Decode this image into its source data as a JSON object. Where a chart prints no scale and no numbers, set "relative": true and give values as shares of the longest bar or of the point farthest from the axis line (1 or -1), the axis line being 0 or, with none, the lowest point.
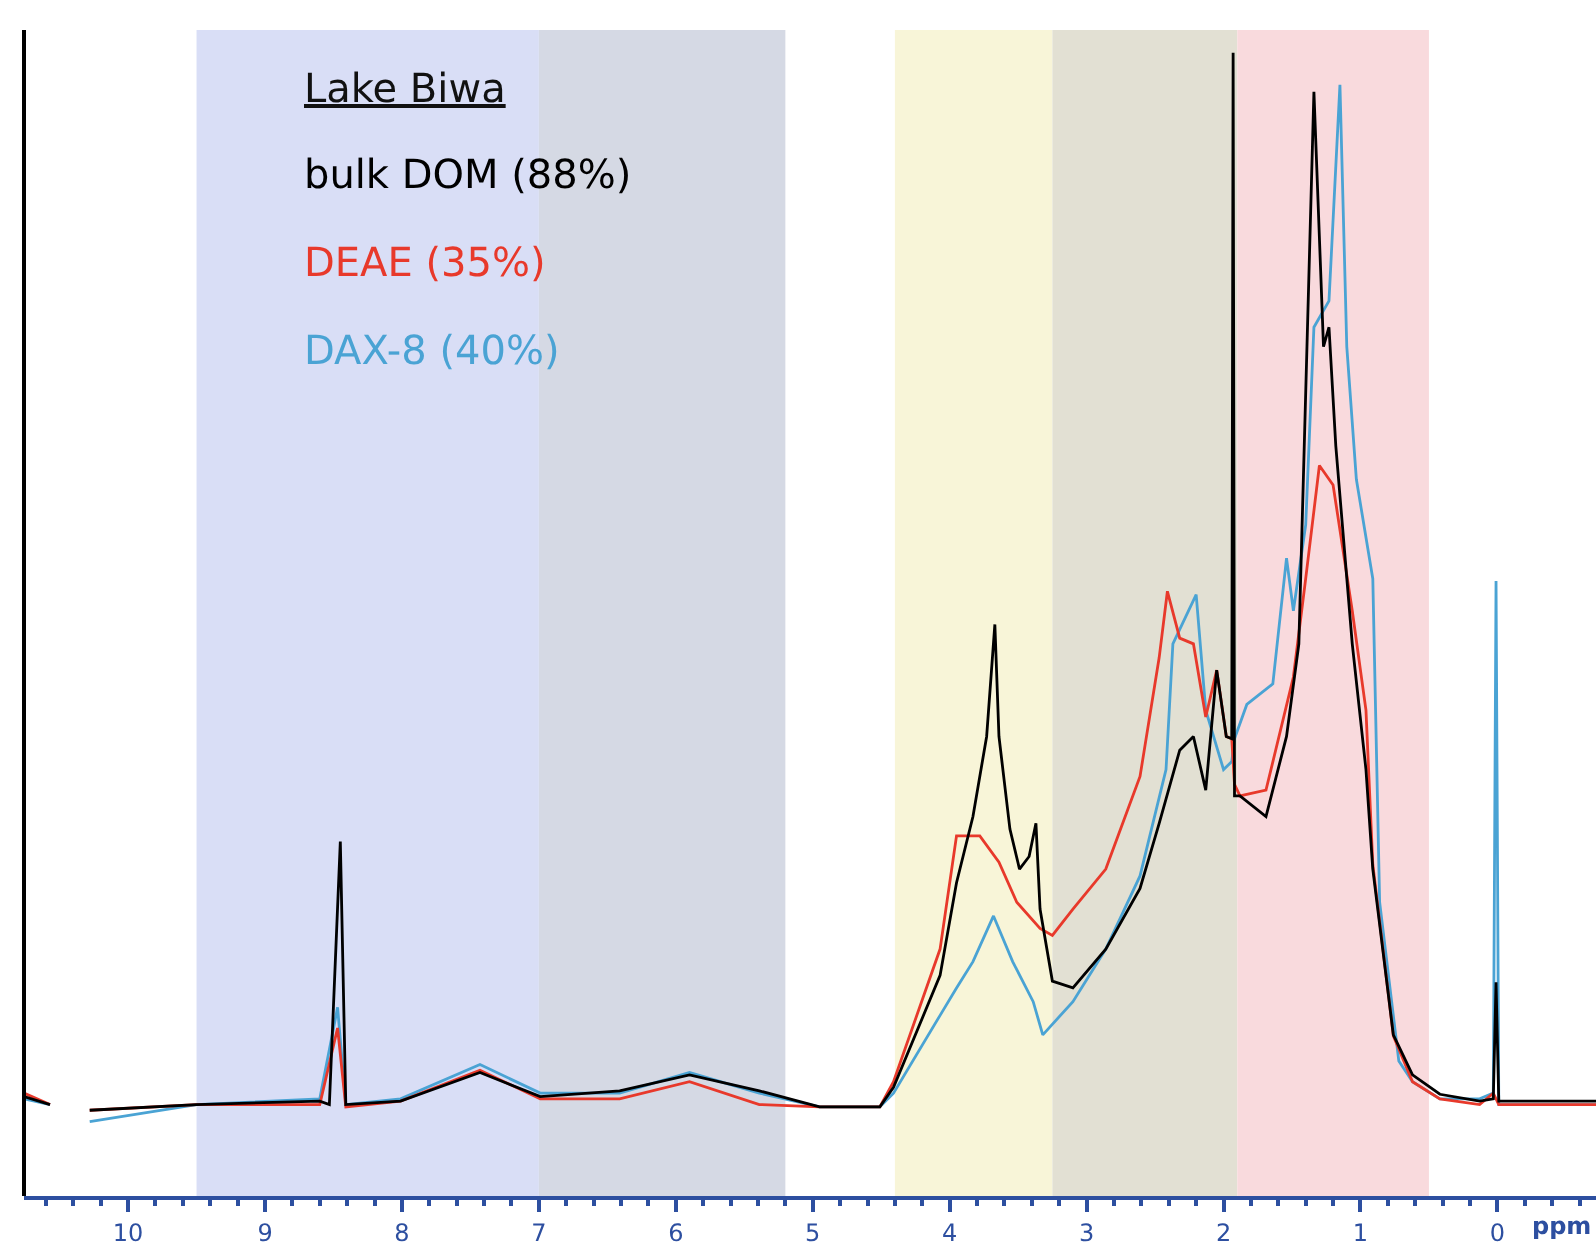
{
  "chart_data": {
    "type": "line",
    "relative": true,
    "xlabel": "ppm",
    "legend_title": "Lake Biwa",
    "xlim": [
      10.76,
      -0.72
    ],
    "xticks": [
      10,
      9,
      8,
      7,
      6,
      5,
      4,
      3,
      2,
      1,
      0
    ],
    "grid": false,
    "legend": false,
    "marker": "none",
    "line_style": "solid",
    "bands": [
      {
        "axis": "x",
        "from": 9.5,
        "to": 7.0,
        "color": "#d9def6"
      },
      {
        "axis": "x",
        "from": 7.0,
        "to": 5.2,
        "color": "#d5d9e4"
      },
      {
        "axis": "x",
        "from": 4.4,
        "to": 3.25,
        "color": "#f8f5d8"
      },
      {
        "axis": "x",
        "from": 3.25,
        "to": 1.9,
        "color": "#e2e0d3"
      },
      {
        "axis": "x",
        "from": 1.9,
        "to": 0.5,
        "color": "#f9dadd"
      }
    ],
    "series": [
      {
        "name": "DAX-8 (40%)",
        "color": "#4aa3d4",
        "x": [
          10.76,
          10.57,
          10.42,
          10.28,
          9.5,
          8.6,
          8.47,
          8.41,
          8.01,
          7.43,
          6.99,
          6.41,
          5.9,
          5.39,
          4.95,
          4.51,
          4.41,
          4.07,
          3.95,
          3.83,
          3.68,
          3.54,
          3.39,
          3.32,
          3.1,
          2.86,
          2.61,
          2.42,
          2.37,
          2.2,
          2.13,
          2.0,
          1.94,
          1.92,
          1.83,
          1.64,
          1.54,
          1.49,
          1.4,
          1.34,
          1.23,
          1.15,
          1.1,
          1.03,
          0.91,
          0.86,
          0.72,
          0.62,
          0.42,
          0.13,
          0.03,
          0.01,
          -0.01,
          -0.06,
          -0.72
        ],
        "values": [
          0.085,
          0.08,
          null,
          0.065,
          0.08,
          0.085,
          0.165,
          0.08,
          0.085,
          0.115,
          0.09,
          0.09,
          0.108,
          0.09,
          0.078,
          0.078,
          0.09,
          0.158,
          0.182,
          0.205,
          0.245,
          0.205,
          0.17,
          0.141,
          0.17,
          0.216,
          0.28,
          0.373,
          0.483,
          0.526,
          0.425,
          0.373,
          0.38,
          0.4,
          0.43,
          0.448,
          0.558,
          0.512,
          0.587,
          0.76,
          0.783,
          0.972,
          0.743,
          0.627,
          0.54,
          0.257,
          0.118,
          0.1,
          0.085,
          0.085,
          0.09,
          0.538,
          0.08,
          0.08,
          0.08
        ]
      },
      {
        "name": "DEAE (35%)",
        "color": "#e8392b",
        "x": [
          10.76,
          10.57,
          10.42,
          10.28,
          9.5,
          8.6,
          8.47,
          8.41,
          8.01,
          7.43,
          6.99,
          6.41,
          5.9,
          5.39,
          4.95,
          4.51,
          4.41,
          4.07,
          3.95,
          3.78,
          3.64,
          3.51,
          3.34,
          3.25,
          3.1,
          2.86,
          2.61,
          2.47,
          2.41,
          2.32,
          2.22,
          2.13,
          2.05,
          1.98,
          1.94,
          1.92,
          1.88,
          1.69,
          1.49,
          1.4,
          1.3,
          1.2,
          1.06,
          0.96,
          0.91,
          0.76,
          0.62,
          0.42,
          0.13,
          0.03,
          -0.01,
          -0.06,
          -0.72
        ],
        "values": [
          0.09,
          0.08,
          null,
          0.075,
          0.08,
          0.08,
          0.147,
          0.078,
          0.083,
          0.11,
          0.085,
          0.085,
          0.1,
          0.08,
          0.078,
          0.078,
          0.1,
          0.216,
          0.315,
          0.315,
          0.292,
          0.257,
          0.234,
          0.228,
          0.251,
          0.286,
          0.367,
          0.471,
          0.529,
          0.488,
          0.483,
          0.419,
          0.46,
          0.402,
          0.4,
          0.36,
          0.35,
          0.355,
          0.454,
          0.54,
          0.639,
          0.622,
          0.512,
          0.425,
          0.29,
          0.14,
          0.1,
          0.085,
          0.08,
          0.09,
          0.08,
          0.08,
          0.08
        ]
      },
      {
        "name": "bulk DOM (88%)",
        "color": "#000000",
        "x": [
          10.76,
          10.57,
          10.42,
          10.28,
          9.5,
          8.6,
          8.53,
          8.45,
          8.41,
          8.01,
          7.43,
          6.99,
          6.41,
          5.9,
          5.39,
          4.95,
          4.51,
          4.41,
          4.07,
          3.95,
          3.83,
          3.73,
          3.67,
          3.64,
          3.56,
          3.49,
          3.42,
          3.37,
          3.34,
          3.25,
          3.1,
          2.86,
          2.61,
          2.47,
          2.32,
          2.22,
          2.13,
          2.05,
          1.98,
          1.94,
          1.93,
          1.92,
          1.88,
          1.69,
          1.54,
          1.45,
          1.34,
          1.27,
          1.23,
          1.18,
          1.06,
          0.96,
          0.91,
          0.76,
          0.62,
          0.42,
          0.13,
          0.03,
          0.01,
          -0.01,
          -0.06,
          -0.72
        ],
        "values": [
          0.087,
          0.08,
          null,
          0.075,
          0.08,
          0.083,
          0.08,
          0.31,
          0.08,
          0.083,
          0.108,
          0.087,
          0.092,
          0.106,
          0.092,
          0.078,
          0.078,
          0.095,
          0.193,
          0.274,
          0.332,
          0.402,
          0.5,
          0.402,
          0.321,
          0.286,
          0.297,
          0.326,
          0.251,
          0.188,
          0.182,
          0.216,
          0.269,
          0.326,
          0.39,
          0.402,
          0.355,
          0.46,
          0.402,
          0.4,
          1.0,
          0.35,
          0.35,
          0.332,
          0.402,
          0.483,
          0.966,
          0.743,
          0.76,
          0.656,
          0.483,
          0.373,
          0.286,
          0.141,
          0.106,
          0.089,
          0.083,
          0.085,
          0.187,
          0.083,
          0.083,
          0.083
        ]
      }
    ]
  }
}
